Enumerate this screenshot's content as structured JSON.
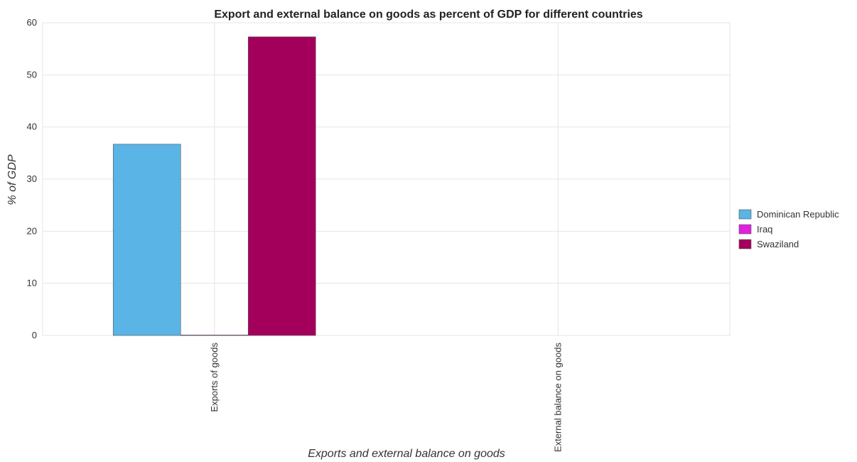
{
  "chart_data": {
    "type": "bar",
    "title": "Export and external balance on goods as percent of GDP for different countries",
    "xlabel": "Exports and external balance on goods",
    "ylabel": "% of GDP",
    "categories": [
      "Exports of goods",
      "External balance on goods"
    ],
    "series": [
      {
        "name": "Dominican Republic",
        "color": "#5ab4e5",
        "values": [
          36.7,
          0
        ]
      },
      {
        "name": "Iraq",
        "color": "#e020e0",
        "values": [
          0.1,
          0
        ]
      },
      {
        "name": "Swaziland",
        "color": "#a3005c",
        "values": [
          57.3,
          0
        ]
      }
    ],
    "ylim": [
      0,
      60
    ],
    "yticks": [
      0,
      10,
      20,
      30,
      40,
      50,
      60
    ],
    "grid": true,
    "legend_position": "right"
  }
}
